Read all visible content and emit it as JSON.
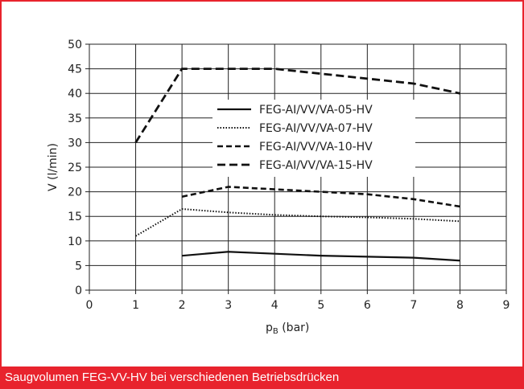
{
  "caption": "Saugvolumen FEG-VV-HV bei verschiedenen Betriebsdrücken",
  "colors": {
    "accent": "#e8232d",
    "line": "#111111",
    "grid": "#222222"
  },
  "chart_data": {
    "type": "line",
    "title": "",
    "xlabel": "pB (bar)",
    "xlabel_main": "p",
    "xlabel_sub": "B",
    "xlabel_unit": " (bar)",
    "ylabel": "V (l/min)",
    "xlim": [
      0,
      9
    ],
    "ylim": [
      0,
      50
    ],
    "xticks": [
      "0",
      "1",
      "2",
      "3",
      "4",
      "5",
      "6",
      "7",
      "8",
      "9"
    ],
    "yticks": [
      "0",
      "5",
      "10",
      "15",
      "20",
      "25",
      "30",
      "35",
      "40",
      "45",
      "50"
    ],
    "grid": true,
    "legend_position": "center",
    "series": [
      {
        "name": "FEG-AI/VV/VA-05-HV",
        "style": "solid",
        "x": [
          2,
          3,
          4,
          5,
          6,
          7,
          8
        ],
        "y": [
          7,
          7.8,
          7.4,
          7,
          6.8,
          6.6,
          6
        ]
      },
      {
        "name": "FEG-AI/VV/VA-07-HV",
        "style": "dotted",
        "x": [
          1,
          2,
          3,
          4,
          5,
          6,
          7,
          8
        ],
        "y": [
          11,
          16.5,
          15.8,
          15.3,
          15,
          14.8,
          14.5,
          14
        ]
      },
      {
        "name": "FEG-AI/VV/VA-10-HV",
        "style": "dashed",
        "x": [
          2,
          3,
          4,
          5,
          6,
          7,
          8
        ],
        "y": [
          19,
          21,
          20.5,
          20,
          19.5,
          18.5,
          17
        ]
      },
      {
        "name": "FEG-AI/VV/VA-15-HV",
        "style": "longdash",
        "x": [
          1,
          2,
          3,
          4,
          5,
          6,
          7,
          8
        ],
        "y": [
          30,
          45,
          45,
          45,
          44,
          43,
          42,
          40
        ]
      }
    ]
  }
}
